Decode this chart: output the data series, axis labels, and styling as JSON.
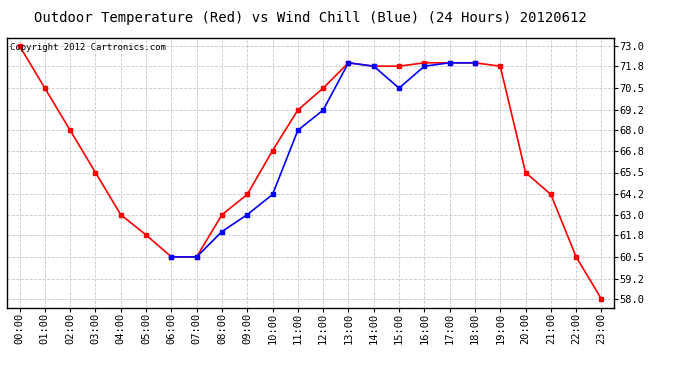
{
  "title": "Outdoor Temperature (Red) vs Wind Chill (Blue) (24 Hours) 20120612",
  "copyright_text": "Copyright 2012 Cartronics.com",
  "hours": [
    "00:00",
    "01:00",
    "02:00",
    "03:00",
    "04:00",
    "05:00",
    "06:00",
    "07:00",
    "08:00",
    "09:00",
    "10:00",
    "11:00",
    "12:00",
    "13:00",
    "14:00",
    "15:00",
    "16:00",
    "17:00",
    "18:00",
    "19:00",
    "20:00",
    "21:00",
    "22:00",
    "23:00"
  ],
  "temp_red": [
    73.0,
    70.5,
    68.0,
    65.5,
    63.0,
    61.8,
    60.5,
    60.5,
    63.0,
    64.2,
    66.8,
    69.2,
    70.5,
    72.0,
    71.8,
    71.8,
    72.0,
    72.0,
    72.0,
    71.8,
    65.5,
    64.2,
    60.5,
    58.0
  ],
  "wind_chill_blue": [
    null,
    null,
    null,
    null,
    null,
    null,
    60.5,
    60.5,
    62.0,
    63.0,
    64.2,
    68.0,
    69.2,
    72.0,
    71.8,
    70.5,
    71.8,
    72.0,
    72.0,
    null,
    null,
    null,
    null,
    null
  ],
  "yticks": [
    58.0,
    59.2,
    60.5,
    61.8,
    63.0,
    64.2,
    65.5,
    66.8,
    68.0,
    69.2,
    70.5,
    71.8,
    73.0
  ],
  "ylim_min": 57.5,
  "ylim_max": 73.5,
  "bg_color": "#ffffff",
  "grid_color": "#c8c8c8",
  "line_color_red": "#ff0000",
  "line_color_blue": "#0000ff",
  "marker": "s",
  "marker_size": 3,
  "title_fontsize": 10,
  "tick_fontsize": 7.5,
  "copyright_fontsize": 6.5
}
